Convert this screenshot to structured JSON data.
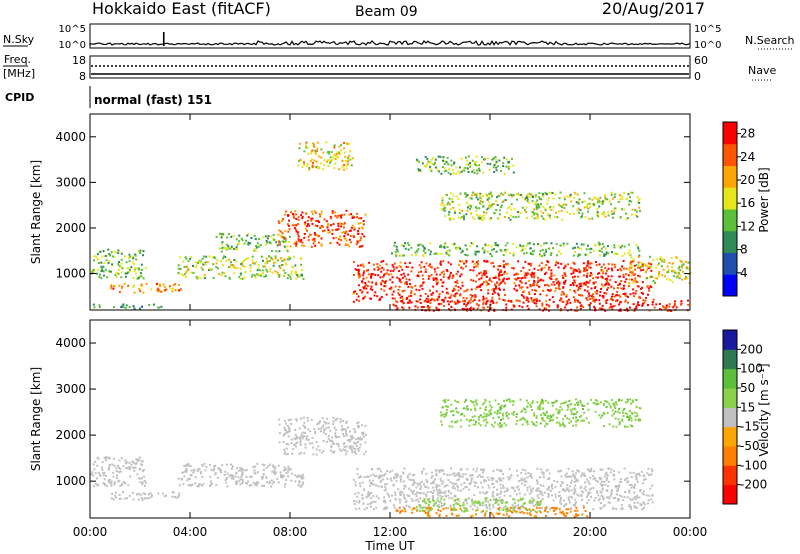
{
  "header": {
    "title": "Hokkaido East (fitACF)",
    "beam": "Beam 09",
    "date": "20/Aug/2017"
  },
  "panels": {
    "nsky_label": "N.Sky",
    "nsky_ticks": [
      "10^5",
      "10^0"
    ],
    "nsearch_label": "N.Search",
    "nsearch_ticks": [
      "10^5",
      "10^0"
    ],
    "freq_label": "Freq.",
    "freq_unit": "[MHz]",
    "freq_ticks": [
      "18",
      "8"
    ],
    "nave_label": "Nave",
    "nave_ticks": [
      "60",
      "0"
    ],
    "cpid_label": "CPID",
    "cpid_value": "normal (fast) 151"
  },
  "chart_data": [
    {
      "type": "heatmap",
      "name": "power",
      "xlabel": "Time UT",
      "ylabel": "Slant Range [km]",
      "x_ticks": [
        "00:00",
        "04:00",
        "08:00",
        "12:00",
        "16:00",
        "20:00",
        "00:00"
      ],
      "xlim_hours": [
        0,
        24
      ],
      "y_ticks": [
        1000,
        2000,
        3000,
        4000
      ],
      "ylim": [
        200,
        4500
      ],
      "colorbar": {
        "label": "Power [dB]",
        "ticks": [
          4,
          8,
          12,
          16,
          20,
          24,
          28
        ],
        "range": [
          0,
          30
        ],
        "colors": [
          "#0000ff",
          "#1f4fb0",
          "#2e8b57",
          "#5cbf3a",
          "#e6e61a",
          "#ffa500",
          "#ff5500",
          "#ff0000"
        ]
      },
      "regions": [
        {
          "t0": 0.0,
          "t1": 2.2,
          "r0": 900,
          "r1": 1550,
          "level": 13
        },
        {
          "t0": 0.0,
          "t1": 3.0,
          "r0": 250,
          "r1": 350,
          "level": 10
        },
        {
          "t0": 0.8,
          "t1": 3.6,
          "r0": 600,
          "r1": 800,
          "level": 22
        },
        {
          "t0": 3.5,
          "t1": 8.5,
          "r0": 900,
          "r1": 1400,
          "level": 15
        },
        {
          "t0": 5.0,
          "t1": 8.0,
          "r0": 1500,
          "r1": 1900,
          "level": 13
        },
        {
          "t0": 7.5,
          "t1": 11.0,
          "r0": 1600,
          "r1": 2400,
          "level": 25
        },
        {
          "t0": 8.3,
          "t1": 10.5,
          "r0": 3300,
          "r1": 3900,
          "level": 18
        },
        {
          "t0": 10.5,
          "t1": 22.5,
          "r0": 400,
          "r1": 1300,
          "level": 27
        },
        {
          "t0": 12.0,
          "t1": 22.0,
          "r0": 1400,
          "r1": 1700,
          "level": 13
        },
        {
          "t0": 12.0,
          "t1": 24.0,
          "r0": 200,
          "r1": 450,
          "level": 28
        },
        {
          "t0": 13.0,
          "t1": 17.0,
          "r0": 3200,
          "r1": 3600,
          "level": 13
        },
        {
          "t0": 14.0,
          "t1": 22.0,
          "r0": 2200,
          "r1": 2800,
          "level": 15
        },
        {
          "t0": 21.5,
          "t1": 24.0,
          "r0": 800,
          "r1": 1400,
          "level": 17
        }
      ]
    },
    {
      "type": "heatmap",
      "name": "velocity",
      "xlabel": "Time UT",
      "ylabel": "Slant Range [km]",
      "x_ticks": [
        "00:00",
        "04:00",
        "08:00",
        "12:00",
        "16:00",
        "20:00",
        "00:00"
      ],
      "xlim_hours": [
        0,
        24
      ],
      "y_ticks": [
        1000,
        2000,
        3000,
        4000
      ],
      "ylim": [
        200,
        4500
      ],
      "colorbar": {
        "label": "Velocity [m s⁻¹]",
        "ticks": [
          200,
          100,
          50,
          15,
          -15,
          -50,
          -100,
          -200
        ],
        "colors": [
          "#1a1aa0",
          "#2e7a4e",
          "#5cbf3a",
          "#8ad24a",
          "#c0c0c0",
          "#ffa500",
          "#ff7f00",
          "#ff3300",
          "#ff0000"
        ]
      },
      "regions": [
        {
          "t0": 0.0,
          "t1": 2.2,
          "r0": 900,
          "r1": 1550,
          "level": 0
        },
        {
          "t0": 0.8,
          "t1": 3.6,
          "r0": 600,
          "r1": 800,
          "level": 0
        },
        {
          "t0": 3.5,
          "t1": 8.5,
          "r0": 900,
          "r1": 1400,
          "level": 0
        },
        {
          "t0": 7.5,
          "t1": 11.0,
          "r0": 1600,
          "r1": 2400,
          "level": 0
        },
        {
          "t0": 10.5,
          "t1": 22.5,
          "r0": 400,
          "r1": 1300,
          "level": 0
        },
        {
          "t0": 12.0,
          "t1": 20.0,
          "r0": 250,
          "r1": 450,
          "level": -60
        },
        {
          "t0": 13.0,
          "t1": 18.0,
          "r0": 350,
          "r1": 650,
          "level": 35
        },
        {
          "t0": 14.0,
          "t1": 22.0,
          "r0": 2200,
          "r1": 2800,
          "level": 40
        }
      ]
    }
  ]
}
